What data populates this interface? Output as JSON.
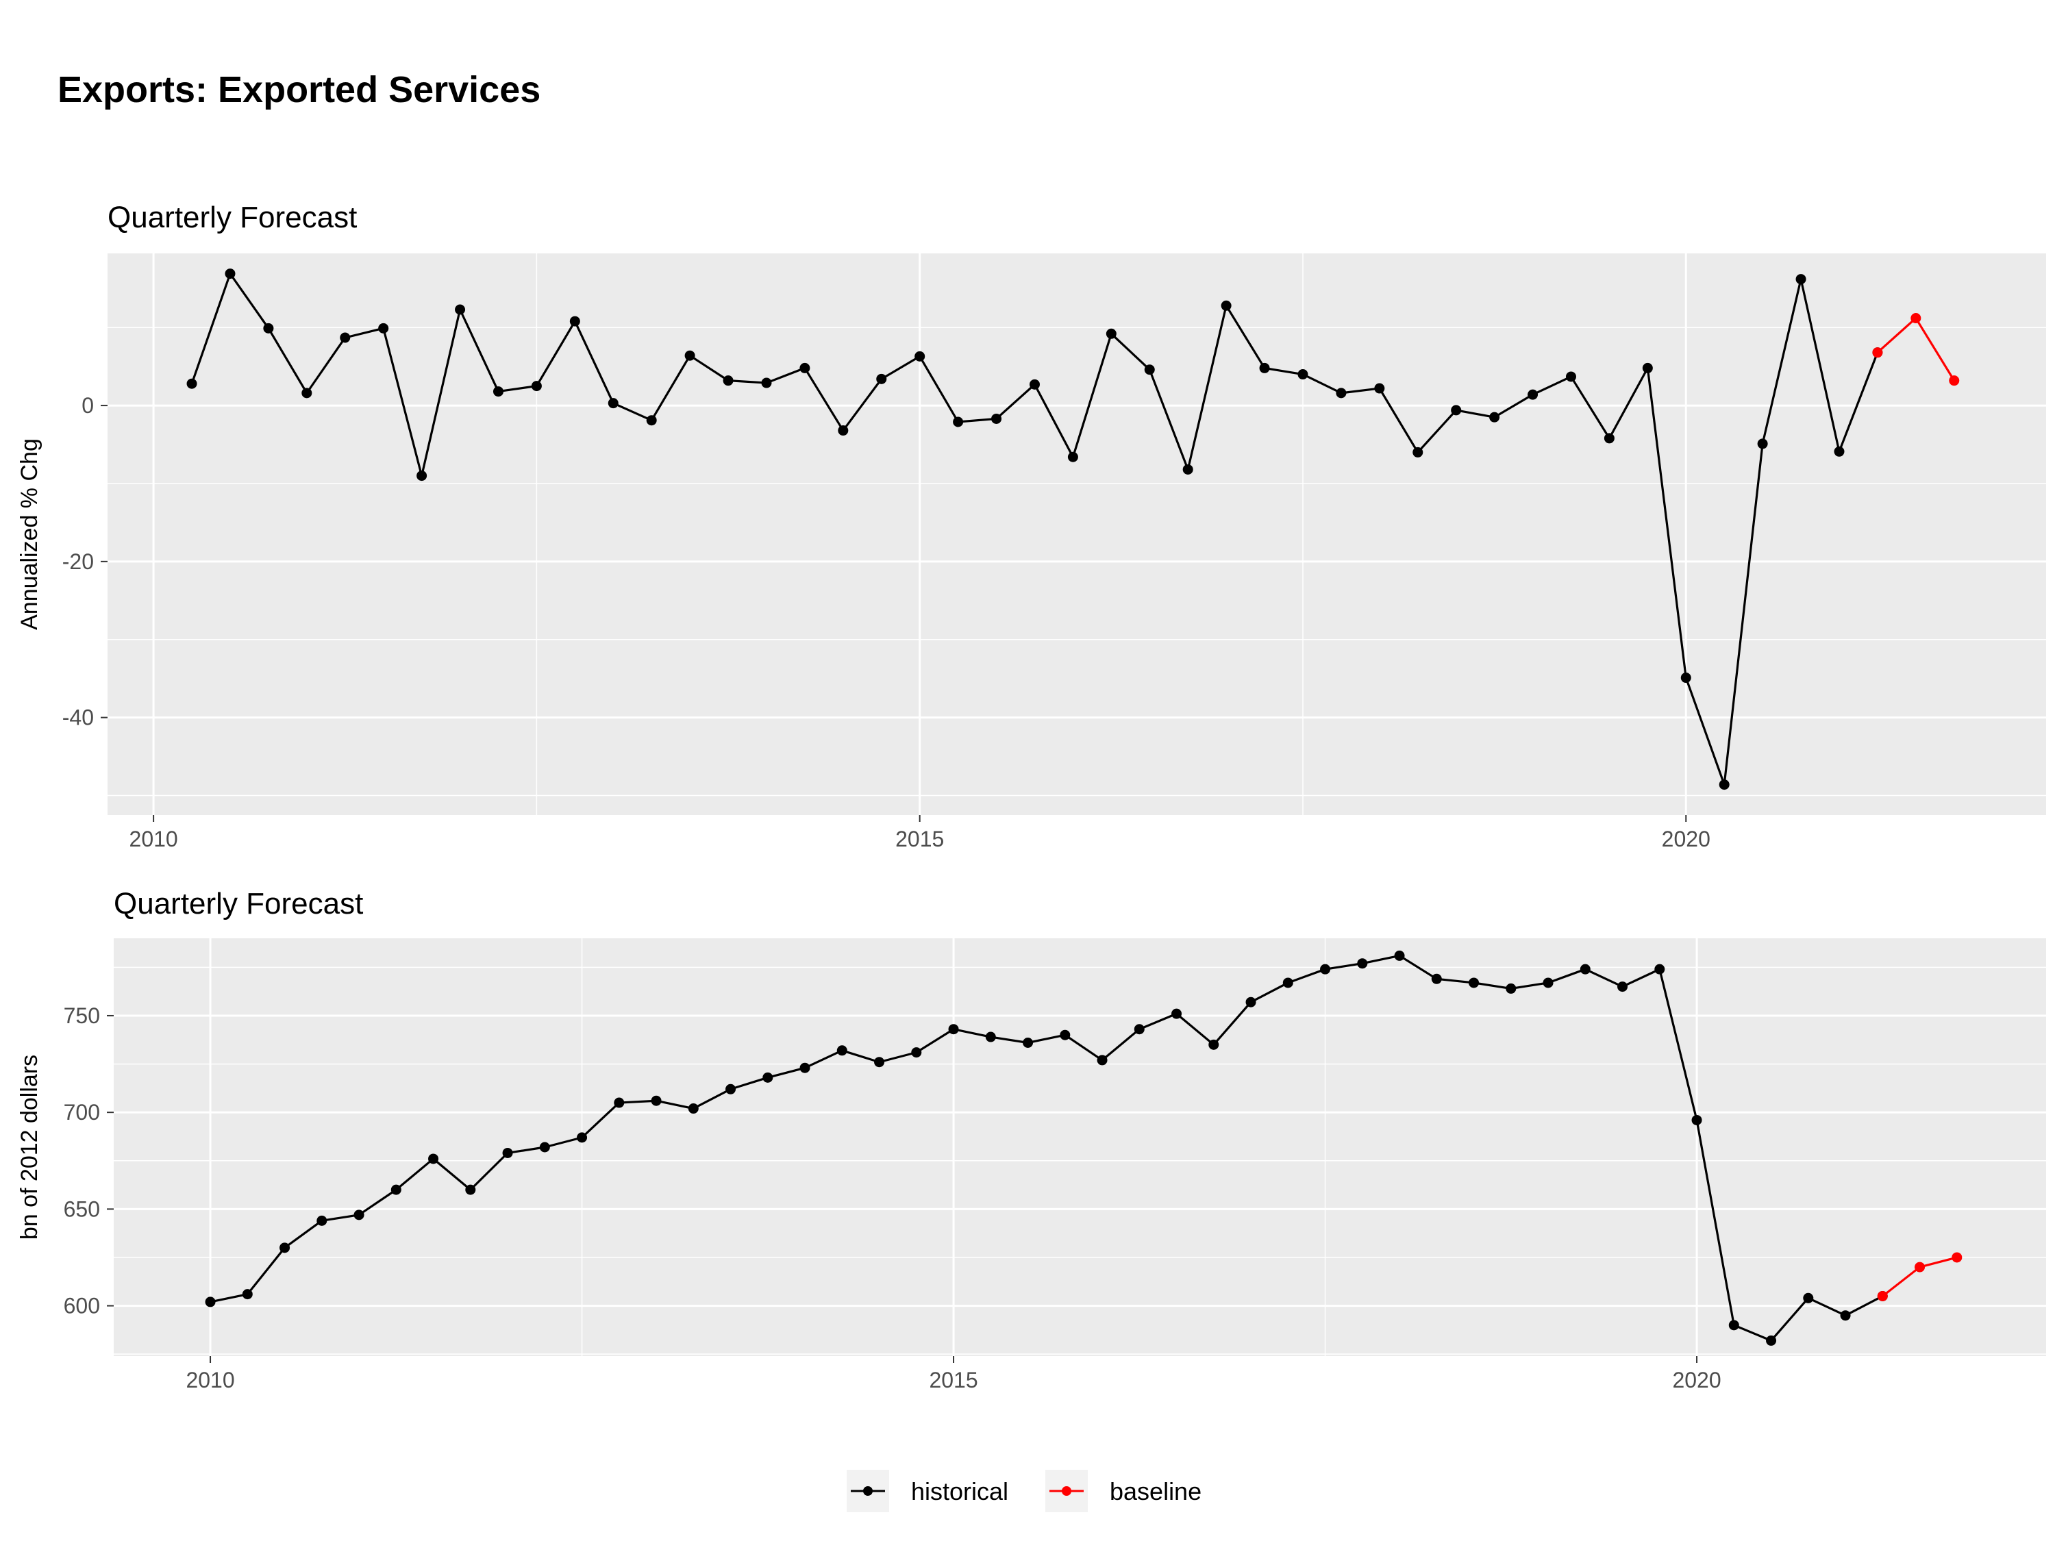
{
  "title": "Exports: Exported Services",
  "colors": {
    "historical": "#000000",
    "baseline": "#ff0000",
    "panel_bg": "#ebebeb",
    "grid": "#ffffff"
  },
  "legend": {
    "placement": "bottom",
    "entries": [
      "historical",
      "baseline"
    ]
  },
  "chart_data": [
    {
      "type": "line",
      "title": "Quarterly Forecast",
      "xlabel": "",
      "ylabel": "Annualized % Chg",
      "xlim": [
        2009.7,
        2022.35
      ],
      "ylim": [
        -52.5,
        19.5
      ],
      "x_ticks": [
        2010,
        2015,
        2020
      ],
      "y_ticks": [
        -40,
        -20,
        0
      ],
      "grid": true,
      "series": [
        {
          "name": "historical",
          "x": [
            2010.25,
            2010.5,
            2010.75,
            2011.0,
            2011.25,
            2011.5,
            2011.75,
            2012.0,
            2012.25,
            2012.5,
            2012.75,
            2013.0,
            2013.25,
            2013.5,
            2013.75,
            2014.0,
            2014.25,
            2014.5,
            2014.75,
            2015.0,
            2015.25,
            2015.5,
            2015.75,
            2016.0,
            2016.25,
            2016.5,
            2016.75,
            2017.0,
            2017.25,
            2017.5,
            2017.75,
            2018.0,
            2018.25,
            2018.5,
            2018.75,
            2019.0,
            2019.25,
            2019.5,
            2019.75,
            2020.0,
            2020.25,
            2020.5,
            2020.75,
            2021.0,
            2021.25
          ],
          "values": [
            2.8,
            16.9,
            9.9,
            1.6,
            8.7,
            9.9,
            -9.0,
            12.3,
            1.8,
            2.5,
            10.8,
            0.3,
            -1.9,
            6.4,
            3.2,
            2.9,
            4.8,
            -3.2,
            3.4,
            6.3,
            -2.1,
            -1.7,
            2.7,
            -6.6,
            9.2,
            4.6,
            -8.2,
            12.8,
            4.8,
            4.0,
            1.6,
            2.2,
            -6.0,
            -0.6,
            -1.5,
            1.4,
            3.7,
            -4.2,
            4.8,
            -34.9,
            -48.6,
            -4.9,
            16.2,
            -5.9,
            6.8
          ]
        },
        {
          "name": "baseline",
          "x": [
            2021.25,
            2021.5,
            2021.75
          ],
          "values": [
            6.8,
            11.2,
            3.2
          ]
        }
      ]
    },
    {
      "type": "line",
      "title": "Quarterly Forecast",
      "xlabel": "",
      "ylabel": "bn of 2012 dollars",
      "xlim": [
        2009.35,
        2022.35
      ],
      "ylim": [
        574,
        790
      ],
      "x_ticks": [
        2010,
        2015,
        2020
      ],
      "y_ticks": [
        600,
        650,
        700,
        750
      ],
      "grid": true,
      "series": [
        {
          "name": "historical",
          "x": [
            2010.0,
            2010.25,
            2010.5,
            2010.75,
            2011.0,
            2011.25,
            2011.5,
            2011.75,
            2012.0,
            2012.25,
            2012.5,
            2012.75,
            2013.0,
            2013.25,
            2013.5,
            2013.75,
            2014.0,
            2014.25,
            2014.5,
            2014.75,
            2015.0,
            2015.25,
            2015.5,
            2015.75,
            2016.0,
            2016.25,
            2016.5,
            2016.75,
            2017.0,
            2017.25,
            2017.5,
            2017.75,
            2018.0,
            2018.25,
            2018.5,
            2018.75,
            2019.0,
            2019.25,
            2019.5,
            2019.75,
            2020.0,
            2020.25,
            2020.5,
            2020.75,
            2021.0,
            2021.25
          ],
          "values": [
            602,
            606,
            630,
            644,
            647,
            660,
            676,
            660,
            679,
            682,
            687,
            705,
            706,
            702,
            712,
            718,
            723,
            732,
            726,
            731,
            743,
            739,
            736,
            740,
            727,
            743,
            751,
            735,
            757,
            767,
            774,
            777,
            781,
            769,
            767,
            764,
            767,
            774,
            765,
            774,
            696,
            590,
            582,
            604,
            595,
            605
          ]
        },
        {
          "name": "baseline",
          "x": [
            2021.25,
            2021.5,
            2021.75
          ],
          "values": [
            605,
            620,
            625
          ]
        }
      ]
    }
  ]
}
